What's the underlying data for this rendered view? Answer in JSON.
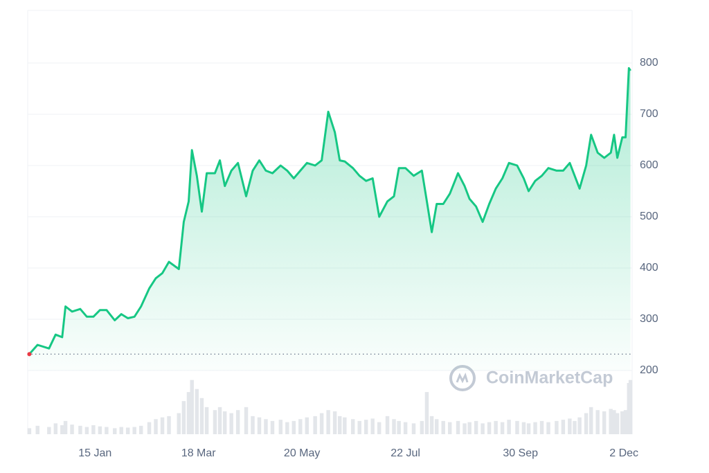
{
  "chart_data": {
    "type": "line",
    "watermark": "CoinMarketCap",
    "x": [
      0,
      5,
      12,
      16,
      20,
      22,
      26,
      31,
      35,
      39,
      43,
      47,
      52,
      56,
      60,
      64,
      68,
      73,
      77,
      81,
      85,
      91,
      94,
      97,
      99,
      102,
      105,
      108,
      113,
      116,
      119,
      123,
      127,
      132,
      136,
      140,
      144,
      148,
      153,
      157,
      161,
      165,
      169,
      174,
      178,
      182,
      186,
      189,
      192,
      197,
      201,
      205,
      209,
      213,
      218,
      222,
      225,
      229,
      234,
      239,
      242,
      245,
      248,
      252,
      256,
      261,
      265,
      268,
      272,
      276,
      280,
      284,
      288,
      292,
      297,
      301,
      304,
      308,
      312,
      316,
      321,
      325,
      329,
      332,
      335,
      339,
      342,
      346,
      350,
      354,
      356,
      358,
      361,
      363,
      365,
      366
    ],
    "series": [
      {
        "name": "Price",
        "color": "#16c784",
        "values": [
          232,
          250,
          243,
          270,
          265,
          325,
          315,
          320,
          305,
          305,
          318,
          318,
          298,
          310,
          302,
          305,
          325,
          360,
          380,
          390,
          412,
          398,
          490,
          530,
          630,
          580,
          510,
          585,
          585,
          610,
          560,
          590,
          605,
          540,
          590,
          610,
          590,
          585,
          600,
          590,
          575,
          590,
          605,
          600,
          610,
          705,
          665,
          610,
          608,
          595,
          580,
          570,
          575,
          500,
          530,
          540,
          595,
          595,
          580,
          590,
          530,
          470,
          525,
          525,
          545,
          585,
          560,
          535,
          520,
          490,
          525,
          555,
          575,
          605,
          600,
          575,
          550,
          570,
          580,
          595,
          590,
          590,
          605,
          580,
          555,
          600,
          660,
          625,
          615,
          625,
          660,
          615,
          655,
          655,
          790,
          785
        ]
      },
      {
        "name": "Volume",
        "color": "#e3e6ea",
        "axis": "volume",
        "values": [
          10,
          14,
          12,
          18,
          15,
          22,
          16,
          14,
          12,
          15,
          13,
          12,
          10,
          12,
          11,
          12,
          14,
          20,
          25,
          28,
          30,
          35,
          55,
          70,
          90,
          75,
          60,
          45,
          40,
          45,
          38,
          35,
          40,
          45,
          30,
          28,
          25,
          22,
          24,
          20,
          22,
          25,
          28,
          30,
          35,
          40,
          38,
          30,
          28,
          25,
          22,
          24,
          26,
          20,
          30,
          25,
          22,
          20,
          18,
          22,
          70,
          30,
          25,
          22,
          20,
          22,
          18,
          20,
          22,
          18,
          20,
          22,
          20,
          24,
          22,
          20,
          18,
          20,
          22,
          20,
          22,
          24,
          26,
          22,
          28,
          35,
          45,
          40,
          38,
          42,
          40,
          35,
          38,
          40,
          85,
          90
        ]
      }
    ],
    "xlim": [
      -1,
      367
    ],
    "xticks": [
      {
        "value": 40,
        "label": "15 Jan"
      },
      {
        "value": 103,
        "label": "18 Mar"
      },
      {
        "value": 166,
        "label": "20 May"
      },
      {
        "value": 229,
        "label": "22 Jul"
      },
      {
        "value": 299,
        "label": "30 Sep"
      },
      {
        "value": 362,
        "label": "2 Dec"
      }
    ],
    "ylim": [
      200,
      900
    ],
    "yticks": [
      200,
      300,
      400,
      500,
      600,
      700,
      800
    ],
    "volume_lim": [
      0,
      100
    ],
    "baseline": 232,
    "grid": true
  }
}
